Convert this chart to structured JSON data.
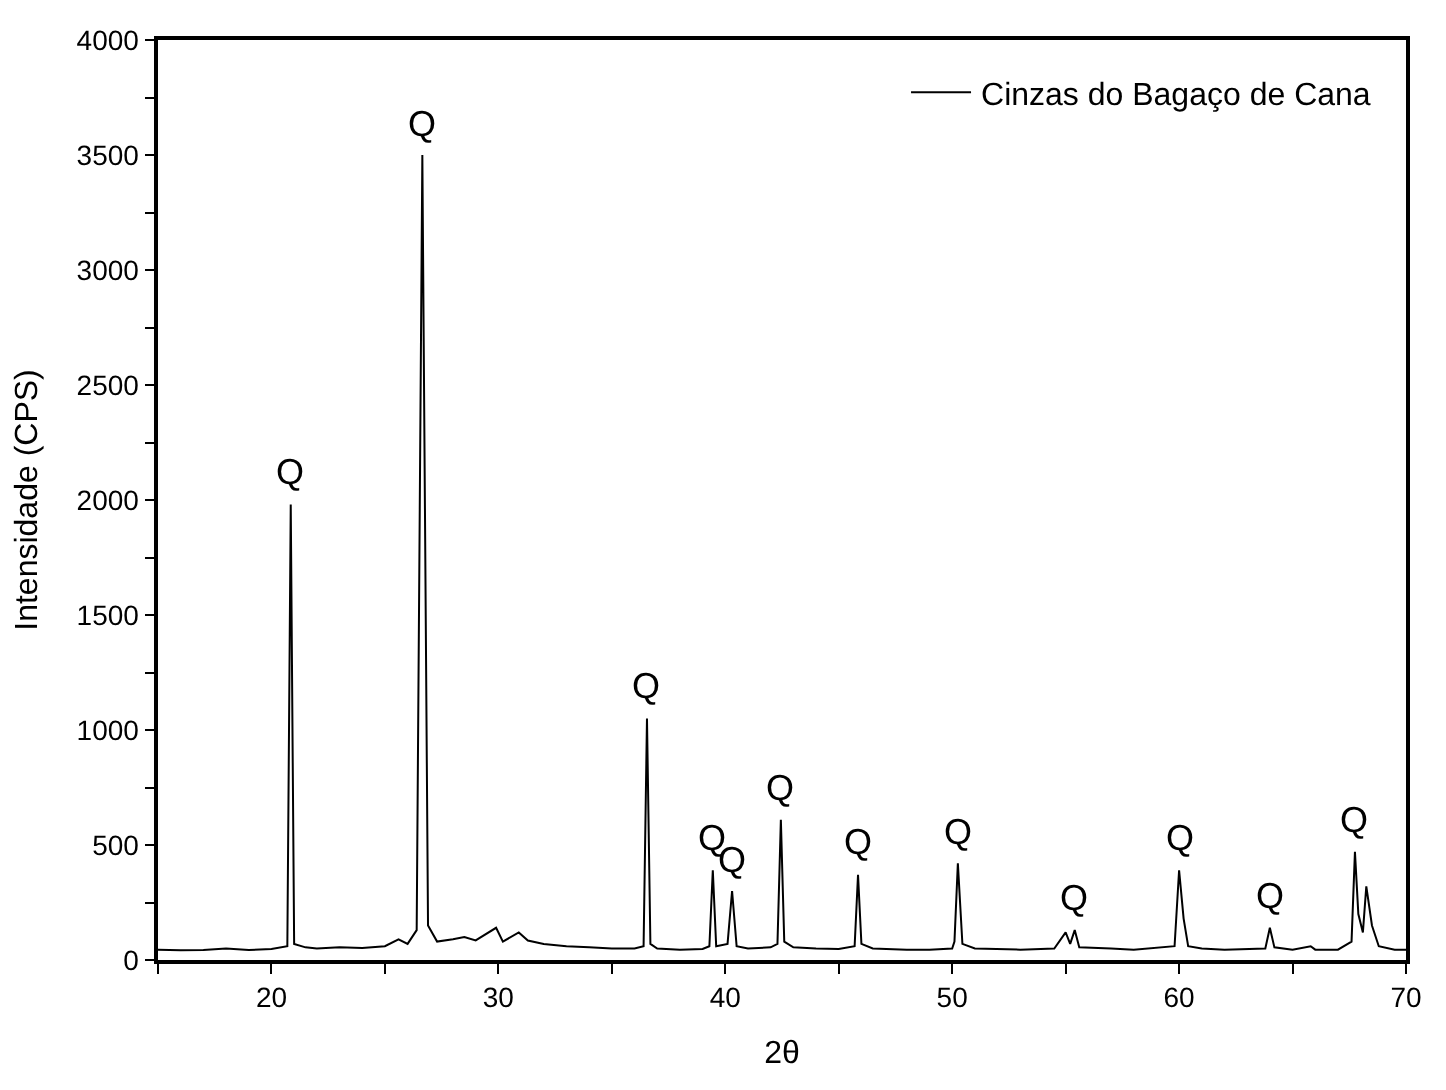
{
  "chart_data": {
    "type": "line",
    "xlabel": "2θ",
    "ylabel": "Intensidade (CPS)",
    "series": [
      {
        "name": "Cinzas do Bagaço de Cana",
        "color": "#000000",
        "x": [
          15,
          16,
          17,
          18,
          19,
          20,
          20.7,
          20.85,
          21.0,
          21.5,
          22,
          23,
          24,
          25,
          25.6,
          26,
          26.4,
          26.65,
          26.9,
          27.3,
          28,
          28.5,
          29,
          29.9,
          30.2,
          30.9,
          31.3,
          32,
          33,
          34,
          35,
          36,
          36.4,
          36.55,
          36.7,
          37,
          38,
          39,
          39.3,
          39.45,
          39.6,
          40.1,
          40.3,
          40.5,
          41,
          42,
          42.3,
          42.45,
          42.6,
          43,
          44,
          45,
          45.7,
          45.85,
          46,
          46.5,
          48,
          49,
          50,
          50.1,
          50.25,
          50.45,
          51,
          53,
          54.5,
          55,
          55.2,
          55.4,
          55.6,
          57,
          58,
          59.8,
          60.0,
          60.2,
          60.4,
          61,
          62,
          63.8,
          64.0,
          64.2,
          65,
          65.8,
          66,
          67,
          67.6,
          67.75,
          67.9,
          68.1,
          68.25,
          68.5,
          68.8,
          69.5,
          70
        ],
        "values": [
          45,
          42,
          44,
          50,
          43,
          48,
          60,
          1980,
          70,
          55,
          50,
          55,
          52,
          60,
          90,
          70,
          130,
          3500,
          150,
          80,
          90,
          100,
          85,
          140,
          80,
          120,
          85,
          70,
          60,
          55,
          50,
          50,
          60,
          1050,
          70,
          50,
          45,
          48,
          60,
          390,
          60,
          70,
          300,
          60,
          50,
          55,
          70,
          610,
          80,
          55,
          50,
          48,
          60,
          370,
          70,
          50,
          45,
          45,
          50,
          80,
          420,
          70,
          50,
          45,
          50,
          120,
          70,
          130,
          55,
          50,
          45,
          60,
          390,
          180,
          60,
          50,
          45,
          50,
          140,
          55,
          45,
          60,
          45,
          45,
          80,
          470,
          200,
          120,
          320,
          150,
          60,
          45,
          45
        ]
      }
    ],
    "xlim": [
      15,
      70
    ],
    "xticks": [
      {
        "value": 15,
        "label": null
      },
      20,
      {
        "value": 25,
        "label": null
      },
      30,
      {
        "value": 35,
        "label": null
      },
      40,
      {
        "value": 45,
        "label": null
      },
      50,
      {
        "value": 55,
        "label": null
      },
      60,
      {
        "value": 65,
        "label": null
      },
      70
    ],
    "ylim": [
      0,
      4000
    ],
    "yticks": [
      0,
      {
        "value": 250,
        "label": null
      },
      500,
      {
        "value": 750,
        "label": null
      },
      1000,
      {
        "value": 1250,
        "label": null
      },
      1500,
      {
        "value": 1750,
        "label": null
      },
      2000,
      {
        "value": 2250,
        "label": null
      },
      2500,
      {
        "value": 2750,
        "label": null
      },
      3000,
      {
        "value": 3250,
        "label": null
      },
      3500,
      {
        "value": 3750,
        "label": null
      },
      4000
    ],
    "annotations": [
      {
        "text": "Q",
        "x": 20.85,
        "y": 1980
      },
      {
        "text": "Q",
        "x": 26.65,
        "y": 3500
      },
      {
        "text": "Q",
        "x": 36.55,
        "y": 1050
      },
      {
        "text": "Q",
        "x": 39.45,
        "y": 390
      },
      {
        "text": "Q",
        "x": 40.3,
        "y": 300
      },
      {
        "text": "Q",
        "x": 42.45,
        "y": 610
      },
      {
        "text": "Q",
        "x": 45.85,
        "y": 370
      },
      {
        "text": "Q",
        "x": 50.25,
        "y": 420
      },
      {
        "text": "Q",
        "x": 55.4,
        "y": 130
      },
      {
        "text": "Q",
        "x": 60.0,
        "y": 390
      },
      {
        "text": "Q",
        "x": 64.0,
        "y": 140
      },
      {
        "text": "Q",
        "x": 67.75,
        "y": 470
      }
    ],
    "legend": "top right",
    "marker": "none",
    "line_style": "solid"
  }
}
